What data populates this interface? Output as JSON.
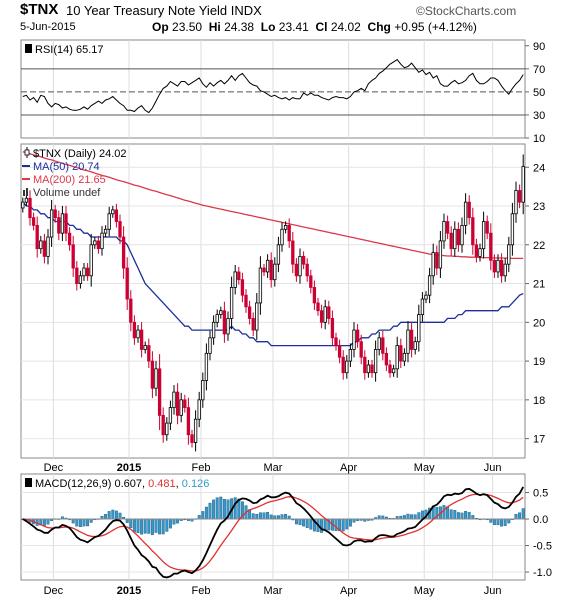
{
  "header": {
    "symbol": "$TNX",
    "description": "10 Year Treasury Note Yield INDX",
    "source": "StockCharts.com",
    "date": "5-Jun-2015",
    "ohlc": [
      {
        "label": "Op",
        "value": "23.50"
      },
      {
        "label": "Hi",
        "value": "24.38"
      },
      {
        "label": "Lo",
        "value": "23.41"
      },
      {
        "label": "Cl",
        "value": "24.02"
      },
      {
        "label": "Chg",
        "value": "+0.95 (+4.12%)"
      }
    ]
  },
  "colors": {
    "up": "#000000",
    "down": "#cc0033",
    "ma50": "#1c2f9c",
    "ma200": "#dc3848",
    "macd": "#000000",
    "signal": "#e03030",
    "histogram": "#3399cc"
  },
  "chart_data": [
    {
      "type": "line",
      "panel": "RSI",
      "label": "RSI(14) 65.17",
      "y_ticks": [
        10,
        30,
        50,
        70,
        90
      ],
      "ylim": [
        10,
        95
      ],
      "reference_lines": [
        30,
        50,
        70
      ],
      "values": [
        46,
        47,
        43,
        45,
        41,
        47,
        46,
        40,
        37,
        40,
        39,
        36,
        37,
        35,
        34,
        34,
        35,
        37,
        35,
        38,
        40,
        42,
        40,
        43,
        44,
        46,
        43,
        40,
        38,
        34,
        34,
        33,
        36,
        38,
        34,
        32,
        36,
        42,
        48,
        53,
        55,
        59,
        57,
        55,
        59,
        59,
        56,
        58,
        60,
        62,
        57,
        54,
        58,
        55,
        58,
        60,
        57,
        60,
        64,
        60,
        64,
        66,
        62,
        58,
        56,
        55,
        51,
        50,
        48,
        46,
        47,
        45,
        44,
        45,
        43,
        45,
        44,
        44,
        49,
        47,
        49,
        47,
        47,
        45,
        44,
        43,
        45,
        46,
        45,
        45,
        44,
        46,
        50,
        51,
        53,
        51,
        57,
        60,
        62,
        66,
        68,
        71,
        74,
        76,
        78,
        74,
        71,
        72,
        75,
        71,
        67,
        69,
        65,
        67,
        62,
        64,
        57,
        55,
        55,
        58,
        60,
        57,
        58,
        60,
        64,
        66,
        60,
        57,
        57,
        59,
        62,
        62,
        60,
        55,
        51,
        48,
        53,
        57,
        60,
        65
      ]
    },
    {
      "type": "candlestick",
      "panel": "Price",
      "series": [
        {
          "name": "$TNX (Daily) 24.02"
        },
        {
          "name": "MA(50) 20.74"
        },
        {
          "name": "MA(200) 21.65"
        },
        {
          "name": "Volume undef"
        }
      ],
      "y_ticks": [
        17,
        18,
        19,
        20,
        21,
        22,
        23,
        24
      ],
      "ylim": [
        16.5,
        24.6
      ],
      "x_labels": [
        "Dec",
        "2015",
        "Feb",
        "Mar",
        "Apr",
        "May",
        "Jun"
      ],
      "x_label_positions": [
        9,
        30,
        50,
        70,
        91,
        112,
        131
      ],
      "close": [
        23.1,
        23.2,
        22.7,
        22.5,
        21.9,
        22.1,
        21.7,
        22.2,
        22.9,
        22.7,
        22.3,
        22.8,
        22.3,
        22.0,
        21.4,
        21.0,
        21.2,
        21.4,
        21.2,
        22.0,
        22.1,
        21.9,
        22.3,
        22.4,
        22.8,
        22.9,
        22.6,
        22.2,
        21.4,
        20.6,
        20.0,
        19.6,
        19.8,
        19.3,
        19.4,
        19.0,
        18.3,
        18.8,
        17.6,
        17.1,
        17.4,
        17.8,
        18.2,
        17.6,
        18.0,
        17.8,
        17.1,
        16.9,
        17.5,
        18.0,
        18.5,
        19.2,
        19.6,
        20.0,
        20.2,
        20.3,
        19.7,
        20.1,
        20.9,
        21.3,
        21.1,
        20.7,
        20.4,
        20.1,
        19.8,
        20.5,
        21.4,
        21.3,
        21.6,
        21.1,
        21.5,
        22.0,
        22.4,
        22.5,
        22.1,
        21.5,
        21.2,
        21.7,
        21.5,
        21.2,
        20.9,
        20.5,
        20.3,
        20.0,
        20.4,
        20.1,
        19.6,
        19.4,
        19.1,
        18.7,
        19.0,
        19.3,
        19.8,
        19.5,
        19.1,
        18.7,
        18.9,
        18.7,
        19.3,
        19.6,
        19.2,
        18.9,
        18.7,
        18.8,
        19.4,
        19.0,
        19.2,
        19.8,
        19.3,
        19.5,
        20.2,
        20.6,
        20.7,
        21.2,
        21.8,
        21.4,
        22.1,
        22.6,
        22.3,
        21.9,
        22.4,
        22.0,
        22.5,
        23.1,
        22.7,
        22.0,
        21.7,
        21.9,
        22.6,
        22.3,
        21.6,
        21.3,
        21.6,
        21.2,
        21.5,
        22.0,
        22.8,
        23.4,
        23.1,
        24.02
      ],
      "ma50": [
        23.1,
        23.0,
        23.0,
        22.9,
        22.9,
        22.8,
        22.8,
        22.7,
        22.7,
        22.6,
        22.6,
        22.6,
        22.6,
        22.5,
        22.5,
        22.4,
        22.4,
        22.3,
        22.3,
        22.2,
        22.2,
        22.2,
        22.2,
        22.2,
        22.2,
        22.2,
        22.2,
        22.1,
        22.1,
        22.0,
        21.8,
        21.6,
        21.4,
        21.2,
        21.0,
        20.9,
        20.8,
        20.7,
        20.6,
        20.5,
        20.4,
        20.3,
        20.2,
        20.1,
        20.0,
        19.9,
        19.9,
        19.8,
        19.8,
        19.8,
        19.8,
        19.8,
        19.8,
        19.8,
        19.8,
        19.8,
        19.8,
        19.8,
        19.9,
        19.8,
        19.8,
        19.7,
        19.7,
        19.6,
        19.6,
        19.5,
        19.5,
        19.5,
        19.5,
        19.4,
        19.4,
        19.4,
        19.4,
        19.4,
        19.4,
        19.4,
        19.4,
        19.4,
        19.4,
        19.4,
        19.4,
        19.4,
        19.4,
        19.4,
        19.4,
        19.4,
        19.4,
        19.4,
        19.4,
        19.4,
        19.4,
        19.4,
        19.5,
        19.5,
        19.6,
        19.6,
        19.6,
        19.7,
        19.7,
        19.8,
        19.8,
        19.8,
        19.8,
        19.9,
        19.9,
        20.0,
        20.0,
        20.0,
        20.0,
        20.0,
        20.0,
        20.0,
        20.0,
        20.0,
        20.0,
        20.0,
        20.0,
        20.0,
        20.1,
        20.1,
        20.1,
        20.2,
        20.2,
        20.3,
        20.3,
        20.3,
        20.3,
        20.3,
        20.3,
        20.3,
        20.3,
        20.3,
        20.3,
        20.4,
        20.4,
        20.4,
        20.5,
        20.6,
        20.7,
        20.74
      ],
      "ma200": [
        24.4,
        24.38,
        24.35,
        24.32,
        24.3,
        24.27,
        24.24,
        24.21,
        24.19,
        24.16,
        24.13,
        24.1,
        24.07,
        24.05,
        24.02,
        23.99,
        23.96,
        23.93,
        23.91,
        23.88,
        23.85,
        23.82,
        23.79,
        23.77,
        23.74,
        23.71,
        23.68,
        23.65,
        23.63,
        23.6,
        23.57,
        23.54,
        23.52,
        23.49,
        23.46,
        23.43,
        23.4,
        23.38,
        23.35,
        23.32,
        23.29,
        23.27,
        23.24,
        23.21,
        23.18,
        23.15,
        23.13,
        23.1,
        23.07,
        23.05,
        23.02,
        23.0,
        22.98,
        22.96,
        22.94,
        22.92,
        22.9,
        22.88,
        22.86,
        22.84,
        22.82,
        22.8,
        22.78,
        22.76,
        22.74,
        22.72,
        22.7,
        22.68,
        22.66,
        22.64,
        22.62,
        22.6,
        22.58,
        22.56,
        22.54,
        22.52,
        22.5,
        22.48,
        22.46,
        22.44,
        22.42,
        22.4,
        22.38,
        22.36,
        22.34,
        22.32,
        22.3,
        22.28,
        22.26,
        22.24,
        22.22,
        22.2,
        22.18,
        22.16,
        22.14,
        22.12,
        22.1,
        22.08,
        22.06,
        22.04,
        22.02,
        22.0,
        21.98,
        21.96,
        21.94,
        21.92,
        21.9,
        21.88,
        21.86,
        21.84,
        21.82,
        21.8,
        21.78,
        21.76,
        21.75,
        21.74,
        21.73,
        21.72,
        21.71,
        21.71,
        21.7,
        21.7,
        21.69,
        21.69,
        21.68,
        21.68,
        21.68,
        21.67,
        21.67,
        21.67,
        21.67,
        21.66,
        21.66,
        21.66,
        21.66,
        21.66,
        21.65,
        21.65,
        21.65,
        21.65
      ]
    },
    {
      "type": "line",
      "panel": "MACD",
      "label": "MACD(12,26,9) 0.607, 0.481, 0.126",
      "label_values": [
        "0.607",
        "0.481",
        "0.126"
      ],
      "y_ticks": [
        -1.0,
        -0.5,
        0.0,
        0.5
      ],
      "y_tick_labels": [
        "-1.0",
        "-0.5",
        "0.0",
        "0.5"
      ],
      "ylim": [
        -1.15,
        0.85
      ],
      "x_labels": [
        "Dec",
        "2015",
        "Feb",
        "Mar",
        "Apr",
        "May",
        "Jun"
      ],
      "macd": [
        0.0,
        -0.04,
        -0.09,
        -0.14,
        -0.2,
        -0.22,
        -0.26,
        -0.26,
        -0.2,
        -0.16,
        -0.16,
        -0.11,
        -0.13,
        -0.17,
        -0.25,
        -0.34,
        -0.39,
        -0.41,
        -0.44,
        -0.39,
        -0.34,
        -0.32,
        -0.26,
        -0.2,
        -0.11,
        -0.04,
        -0.02,
        -0.03,
        -0.1,
        -0.22,
        -0.36,
        -0.5,
        -0.58,
        -0.68,
        -0.73,
        -0.8,
        -0.9,
        -0.92,
        -1.02,
        -1.09,
        -1.1,
        -1.08,
        -1.03,
        -1.03,
        -0.99,
        -0.97,
        -1.0,
        -1.02,
        -0.97,
        -0.89,
        -0.78,
        -0.64,
        -0.49,
        -0.34,
        -0.2,
        -0.08,
        -0.03,
        0.05,
        0.17,
        0.29,
        0.36,
        0.39,
        0.38,
        0.35,
        0.3,
        0.31,
        0.37,
        0.4,
        0.44,
        0.41,
        0.41,
        0.43,
        0.47,
        0.5,
        0.48,
        0.4,
        0.3,
        0.26,
        0.2,
        0.13,
        0.05,
        -0.04,
        -0.11,
        -0.19,
        -0.21,
        -0.25,
        -0.31,
        -0.37,
        -0.43,
        -0.49,
        -0.5,
        -0.48,
        -0.42,
        -0.4,
        -0.4,
        -0.43,
        -0.42,
        -0.42,
        -0.36,
        -0.31,
        -0.3,
        -0.31,
        -0.33,
        -0.33,
        -0.28,
        -0.26,
        -0.23,
        -0.18,
        -0.17,
        -0.15,
        -0.08,
        -0.01,
        0.05,
        0.14,
        0.24,
        0.27,
        0.34,
        0.43,
        0.46,
        0.45,
        0.48,
        0.47,
        0.49,
        0.56,
        0.57,
        0.53,
        0.48,
        0.45,
        0.47,
        0.45,
        0.38,
        0.31,
        0.28,
        0.22,
        0.2,
        0.23,
        0.31,
        0.42,
        0.48,
        0.607
      ]
    }
  ]
}
